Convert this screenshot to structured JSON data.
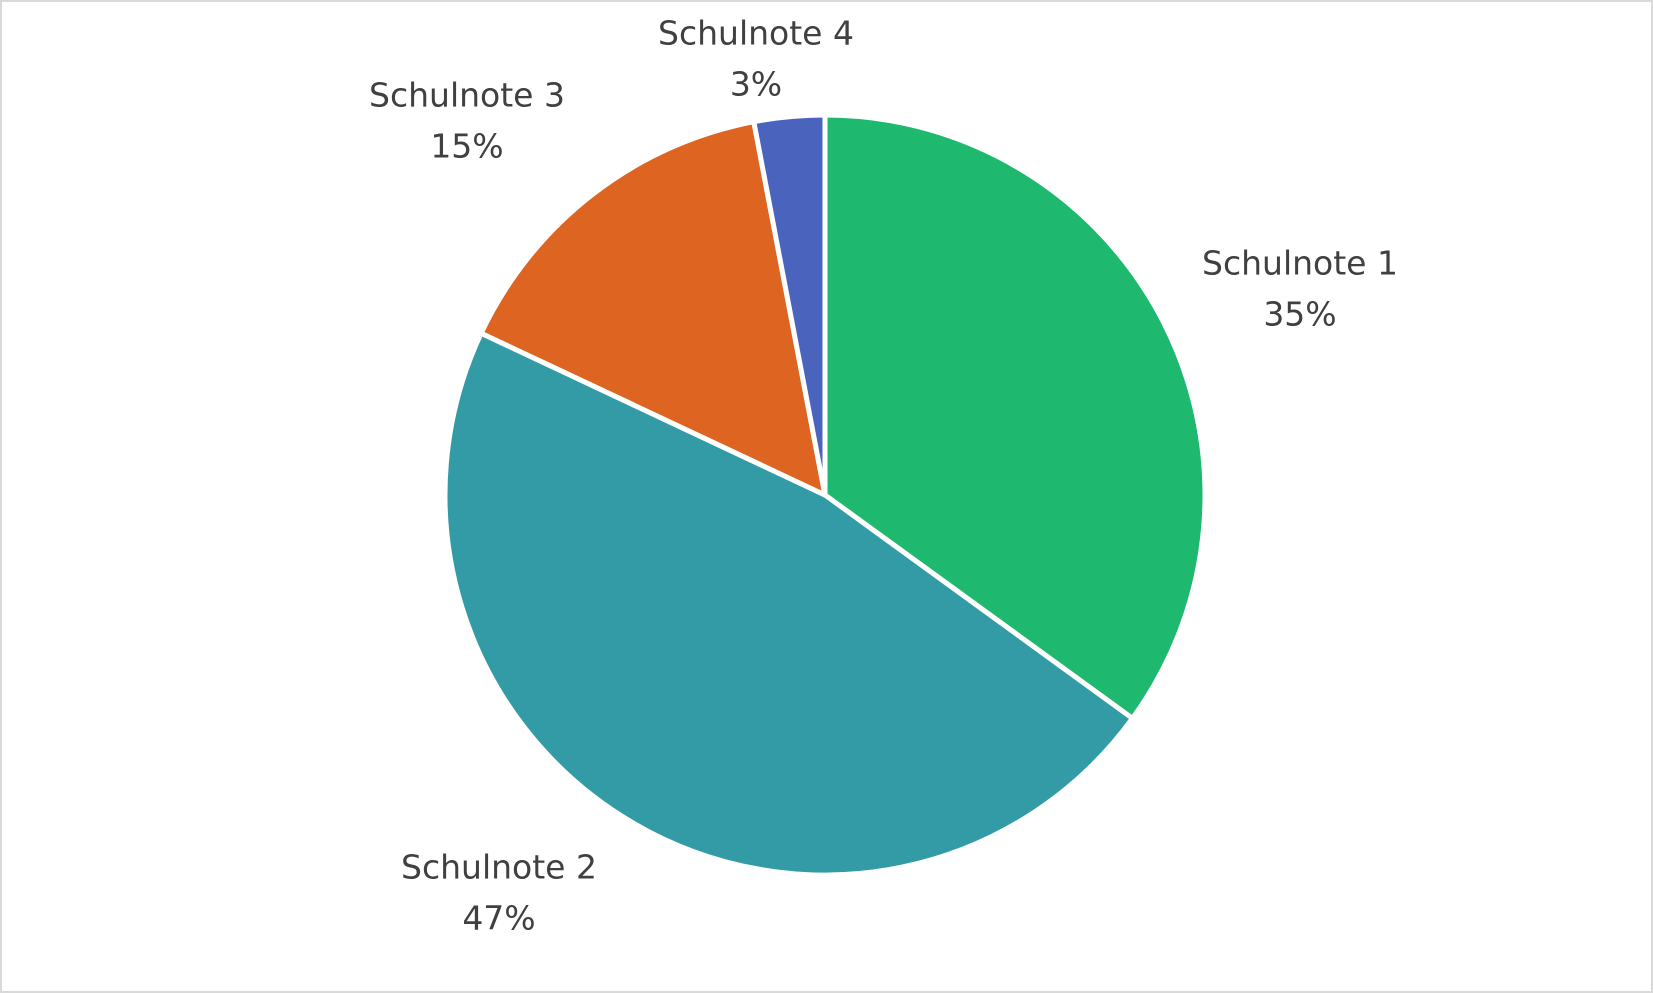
{
  "chart_data": {
    "type": "pie",
    "categories": [
      "Schulnote 1",
      "Schulnote 2",
      "Schulnote 3",
      "Schulnote 4"
    ],
    "values": [
      35,
      47,
      15,
      3
    ],
    "value_labels": [
      "35%",
      "47%",
      "15%",
      "3%"
    ],
    "colors": [
      "#1eb86e",
      "#339ba5",
      "#de6421",
      "#4a64be"
    ]
  }
}
